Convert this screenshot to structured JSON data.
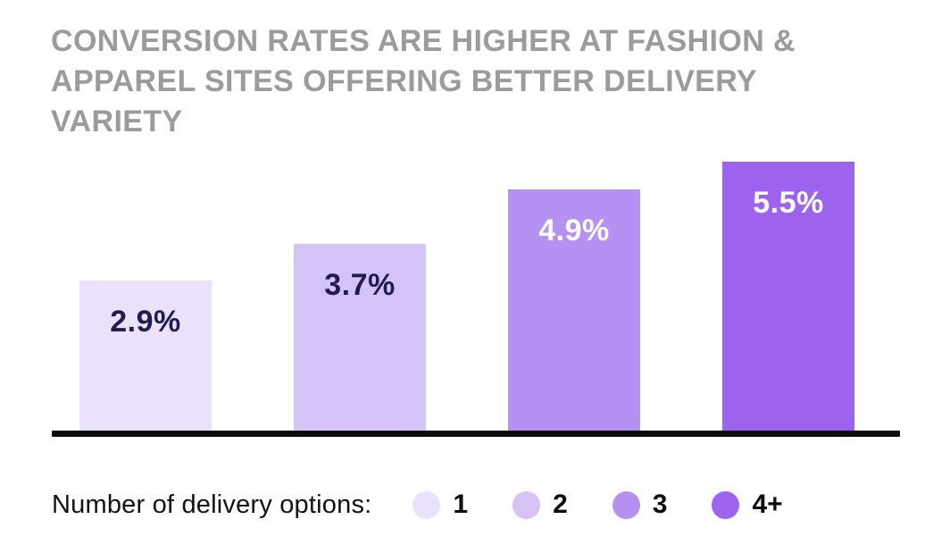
{
  "title": "CONVERSION RATES ARE HIGHER AT FASHION & APPAREL SITES OFFERING BETTER DELIVERY VARIETY",
  "colors": {
    "title_gray": "#9b9b9b",
    "axis_black": "#0c0c0c",
    "value_label_dark": "#211d4f",
    "value_label_light": "#ffffff",
    "background": "#ffffff"
  },
  "chart_data": {
    "type": "bar",
    "title": "Conversion rates are higher at fashion & apparel sites offering better delivery variety",
    "categories": [
      "1",
      "2",
      "3",
      "4+"
    ],
    "values": [
      2.9,
      3.7,
      4.9,
      5.5
    ],
    "value_labels": [
      "2.9%",
      "3.7%",
      "4.9%",
      "5.5%"
    ],
    "bar_colors": [
      "#eae2fa",
      "#d5c3f7",
      "#b592f2",
      "#9d63ef"
    ],
    "value_label_colors": [
      "#211d4f",
      "#211d4f",
      "#ffffff",
      "#ffffff"
    ],
    "xlabel": "Number of delivery options:",
    "ylabel": "",
    "ylim": [
      0,
      5.5
    ],
    "grid": false,
    "legend_position": "bottom"
  },
  "legend": {
    "label": "Number of delivery options:",
    "items": [
      {
        "label": "1",
        "color": "#eae2fa"
      },
      {
        "label": "2",
        "color": "#d5c3f7"
      },
      {
        "label": "3",
        "color": "#b592f2"
      },
      {
        "label": "4+",
        "color": "#9d63ef"
      }
    ]
  }
}
